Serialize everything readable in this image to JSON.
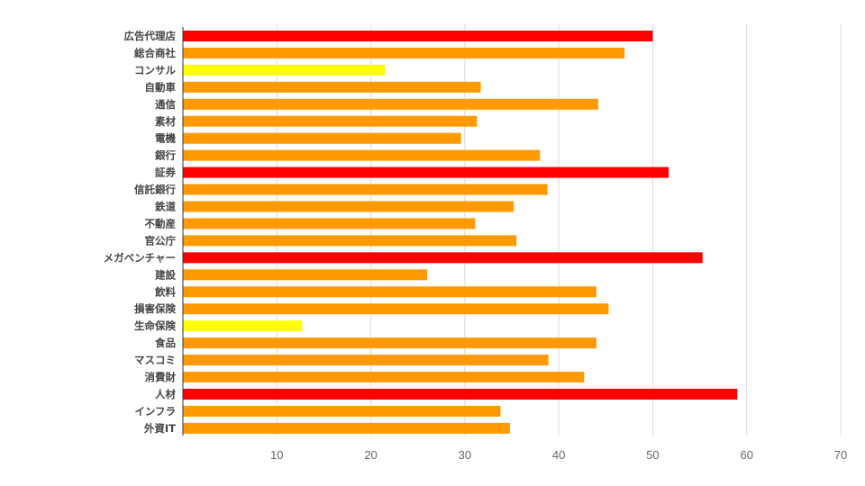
{
  "chart_data": {
    "type": "bar",
    "orientation": "horizontal",
    "title": "",
    "xlabel": "",
    "ylabel": "",
    "xlim": [
      0,
      70
    ],
    "xticks": [
      10,
      20,
      30,
      40,
      50,
      60,
      70
    ],
    "grid": true,
    "legend": "none",
    "categories": [
      "広告代理店",
      "総合商社",
      "コンサル",
      "自動車",
      "通信",
      "素材",
      "電機",
      "銀行",
      "証券",
      "信託銀行",
      "鉄道",
      "不動産",
      "官公庁",
      "メガベンチャー",
      "建設",
      "飲料",
      "損害保険",
      "生命保険",
      "食品",
      "マスコミ",
      "消費財",
      "人材",
      "インフラ",
      "外資IT"
    ],
    "values": [
      50.0,
      47.0,
      21.5,
      31.7,
      44.2,
      31.3,
      29.6,
      38.0,
      51.7,
      38.8,
      35.2,
      31.1,
      35.5,
      55.3,
      26.0,
      44.0,
      45.3,
      12.7,
      44.0,
      38.9,
      42.7,
      59.0,
      33.8,
      34.8
    ],
    "bar_colors": [
      "#ff0000",
      "#ff9900",
      "#ffff00",
      "#ff9900",
      "#ff9900",
      "#ff9900",
      "#ff9900",
      "#ff9900",
      "#ff0000",
      "#ff9900",
      "#ff9900",
      "#ff9900",
      "#ff9900",
      "#ff0000",
      "#ff9900",
      "#ff9900",
      "#ff9900",
      "#ffff00",
      "#ff9900",
      "#ff9900",
      "#ff9900",
      "#ff0000",
      "#ff9900",
      "#ff9900"
    ]
  }
}
